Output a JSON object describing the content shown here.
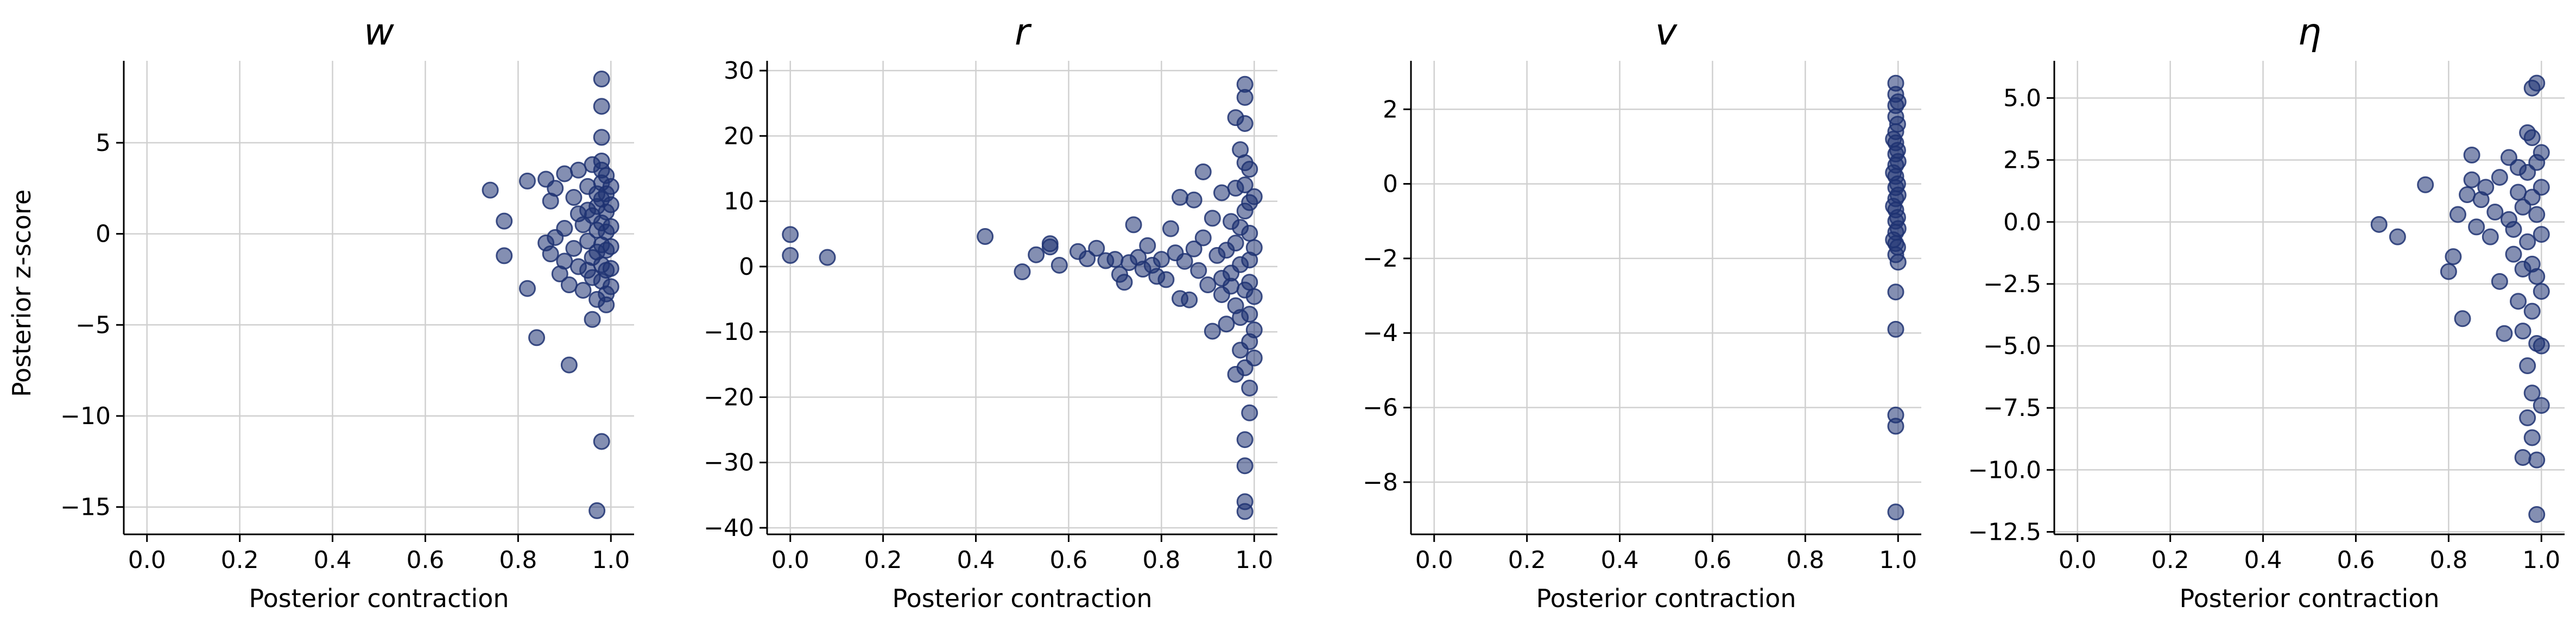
{
  "figure": {
    "ylabel": "Posterior z-score",
    "point_color": "#1f3372",
    "grid_color": "#d0d0d0"
  },
  "chart_data": [
    {
      "type": "scatter",
      "title": "w",
      "xlabel": "Posterior contraction",
      "ylabel": "Posterior z-score",
      "xlim": [
        -0.05,
        1.05
      ],
      "ylim": [
        -16.5,
        9.5
      ],
      "xticks": [
        "0.0",
        "0.2",
        "0.4",
        "0.6",
        "0.8",
        "1.0"
      ],
      "yticks": [
        {
          "v": 5,
          "label": "5"
        },
        {
          "v": 0,
          "label": "0"
        },
        {
          "v": -5,
          "label": "−5"
        },
        {
          "v": -10,
          "label": "−10"
        },
        {
          "v": -15,
          "label": "−15"
        }
      ],
      "grid": true,
      "points": [
        [
          0.74,
          2.4
        ],
        [
          0.77,
          0.7
        ],
        [
          0.77,
          -1.2
        ],
        [
          0.82,
          2.9
        ],
        [
          0.82,
          -3.0
        ],
        [
          0.84,
          -5.7
        ],
        [
          0.86,
          3.0
        ],
        [
          0.86,
          -0.5
        ],
        [
          0.87,
          1.8
        ],
        [
          0.87,
          -1.1
        ],
        [
          0.88,
          2.5
        ],
        [
          0.88,
          -0.2
        ],
        [
          0.89,
          -2.2
        ],
        [
          0.9,
          3.3
        ],
        [
          0.9,
          0.3
        ],
        [
          0.9,
          -1.5
        ],
        [
          0.91,
          -2.8
        ],
        [
          0.91,
          -7.2
        ],
        [
          0.92,
          2.0
        ],
        [
          0.92,
          -0.8
        ],
        [
          0.93,
          3.5
        ],
        [
          0.93,
          1.1
        ],
        [
          0.93,
          -1.8
        ],
        [
          0.94,
          0.5
        ],
        [
          0.94,
          -3.1
        ],
        [
          0.95,
          2.6
        ],
        [
          0.95,
          -0.4
        ],
        [
          0.96,
          3.8
        ],
        [
          0.96,
          -2.4
        ],
        [
          0.96,
          -4.7
        ],
        [
          0.97,
          1.5
        ],
        [
          0.97,
          -1.0
        ],
        [
          0.97,
          -3.6
        ],
        [
          0.98,
          8.5
        ],
        [
          0.98,
          7.0
        ],
        [
          0.98,
          5.3
        ],
        [
          0.98,
          4.0
        ],
        [
          0.98,
          2.8
        ],
        [
          0.98,
          1.9
        ],
        [
          0.98,
          0.6
        ],
        [
          0.98,
          -0.6
        ],
        [
          0.98,
          -1.7
        ],
        [
          0.98,
          -2.6
        ],
        [
          0.98,
          -11.4
        ],
        [
          0.97,
          -15.2
        ],
        [
          0.99,
          3.2
        ],
        [
          0.99,
          2.2
        ],
        [
          0.99,
          1.2
        ],
        [
          0.99,
          0.1
        ],
        [
          0.99,
          -0.9
        ],
        [
          0.99,
          -2.0
        ],
        [
          0.99,
          -3.3
        ],
        [
          1.0,
          2.6
        ],
        [
          1.0,
          1.6
        ],
        [
          1.0,
          0.4
        ],
        [
          1.0,
          -0.7
        ],
        [
          1.0,
          -1.9
        ],
        [
          1.0,
          -2.9
        ],
        [
          0.97,
          2.2
        ],
        [
          0.97,
          0.2
        ],
        [
          0.96,
          1.0
        ],
        [
          0.96,
          -1.3
        ],
        [
          0.95,
          1.3
        ],
        [
          0.95,
          -2.0
        ],
        [
          0.99,
          -3.9
        ],
        [
          0.98,
          3.5
        ]
      ]
    },
    {
      "type": "scatter",
      "title": "r",
      "xlabel": "Posterior contraction",
      "ylabel": "",
      "xlim": [
        -0.05,
        1.05
      ],
      "ylim": [
        -41,
        31.5
      ],
      "xticks": [
        "0.0",
        "0.2",
        "0.4",
        "0.6",
        "0.8",
        "1.0"
      ],
      "yticks": [
        {
          "v": 30,
          "label": "30"
        },
        {
          "v": 20,
          "label": "20"
        },
        {
          "v": 10,
          "label": "10"
        },
        {
          "v": 0,
          "label": "0"
        },
        {
          "v": -10,
          "label": "−10"
        },
        {
          "v": -20,
          "label": "−20"
        },
        {
          "v": -30,
          "label": "−30"
        },
        {
          "v": -40,
          "label": "−40"
        }
      ],
      "grid": true,
      "points": [
        [
          0.0,
          4.9
        ],
        [
          0.0,
          1.7
        ],
        [
          0.08,
          1.4
        ],
        [
          0.42,
          4.6
        ],
        [
          0.5,
          -0.8
        ],
        [
          0.53,
          1.8
        ],
        [
          0.56,
          3.5
        ],
        [
          0.56,
          3.0
        ],
        [
          0.58,
          0.2
        ],
        [
          0.62,
          2.3
        ],
        [
          0.64,
          1.2
        ],
        [
          0.66,
          2.8
        ],
        [
          0.68,
          0.9
        ],
        [
          0.7,
          1.1
        ],
        [
          0.71,
          -1.2
        ],
        [
          0.72,
          -2.4
        ],
        [
          0.73,
          0.6
        ],
        [
          0.74,
          6.4
        ],
        [
          0.75,
          1.4
        ],
        [
          0.76,
          -0.4
        ],
        [
          0.77,
          3.2
        ],
        [
          0.78,
          0.2
        ],
        [
          0.79,
          -1.5
        ],
        [
          0.8,
          1.1
        ],
        [
          0.81,
          -2.0
        ],
        [
          0.82,
          5.8
        ],
        [
          0.83,
          2.1
        ],
        [
          0.84,
          -4.9
        ],
        [
          0.84,
          10.6
        ],
        [
          0.85,
          0.8
        ],
        [
          0.86,
          -5.1
        ],
        [
          0.87,
          2.7
        ],
        [
          0.87,
          10.2
        ],
        [
          0.88,
          -0.6
        ],
        [
          0.89,
          14.5
        ],
        [
          0.89,
          4.4
        ],
        [
          0.9,
          -2.8
        ],
        [
          0.91,
          7.4
        ],
        [
          0.91,
          -9.9
        ],
        [
          0.92,
          1.7
        ],
        [
          0.93,
          11.3
        ],
        [
          0.93,
          -4.3
        ],
        [
          0.94,
          -8.8
        ],
        [
          0.95,
          6.9
        ],
        [
          0.95,
          -1.0
        ],
        [
          0.96,
          22.8
        ],
        [
          0.96,
          3.6
        ],
        [
          0.96,
          -6.0
        ],
        [
          0.97,
          17.9
        ],
        [
          0.97,
          0.3
        ],
        [
          0.97,
          -12.8
        ],
        [
          0.98,
          27.9
        ],
        [
          0.98,
          25.9
        ],
        [
          0.98,
          21.9
        ],
        [
          0.98,
          15.9
        ],
        [
          0.98,
          12.5
        ],
        [
          0.98,
          8.5
        ],
        [
          0.98,
          -3.6
        ],
        [
          0.98,
          -15.5
        ],
        [
          0.98,
          -26.5
        ],
        [
          0.98,
          -30.5
        ],
        [
          0.98,
          -36.0
        ],
        [
          0.98,
          -37.5
        ],
        [
          0.99,
          14.9
        ],
        [
          0.99,
          9.8
        ],
        [
          0.99,
          5.1
        ],
        [
          0.99,
          1.0
        ],
        [
          0.99,
          -2.4
        ],
        [
          0.99,
          -7.3
        ],
        [
          0.99,
          -11.5
        ],
        [
          0.99,
          -18.6
        ],
        [
          0.99,
          -22.4
        ],
        [
          1.0,
          10.7
        ],
        [
          1.0,
          2.9
        ],
        [
          1.0,
          -4.6
        ],
        [
          1.0,
          -9.7
        ],
        [
          1.0,
          -14.0
        ],
        [
          0.97,
          6.0
        ],
        [
          0.97,
          -7.8
        ],
        [
          0.96,
          12.0
        ],
        [
          0.96,
          -16.5
        ],
        [
          0.95,
          -3.0
        ],
        [
          0.94,
          2.5
        ],
        [
          0.93,
          -1.8
        ]
      ]
    },
    {
      "type": "scatter",
      "title": "v",
      "xlabel": "Posterior contraction",
      "ylabel": "",
      "xlim": [
        -0.05,
        1.05
      ],
      "ylim": [
        -9.4,
        3.3
      ],
      "xticks": [
        "0.0",
        "0.2",
        "0.4",
        "0.6",
        "0.8",
        "1.0"
      ],
      "yticks": [
        {
          "v": 2,
          "label": "2"
        },
        {
          "v": 0,
          "label": "0"
        },
        {
          "v": -2,
          "label": "−2"
        },
        {
          "v": -4,
          "label": "−4"
        },
        {
          "v": -6,
          "label": "−6"
        },
        {
          "v": -8,
          "label": "−8"
        }
      ],
      "grid": true,
      "points": [
        [
          0.995,
          2.7
        ],
        [
          0.995,
          2.4
        ],
        [
          0.995,
          2.1
        ],
        [
          0.995,
          1.8
        ],
        [
          0.995,
          1.4
        ],
        [
          0.995,
          1.1
        ],
        [
          0.995,
          0.8
        ],
        [
          0.995,
          0.5
        ],
        [
          0.995,
          0.2
        ],
        [
          0.995,
          -0.1
        ],
        [
          0.995,
          -0.4
        ],
        [
          0.995,
          -0.7
        ],
        [
          0.995,
          -1.0
        ],
        [
          0.995,
          -1.3
        ],
        [
          0.995,
          -1.6
        ],
        [
          0.995,
          -1.9
        ],
        [
          0.995,
          -2.9
        ],
        [
          0.995,
          -3.9
        ],
        [
          0.995,
          -6.2
        ],
        [
          0.995,
          -6.5
        ],
        [
          0.995,
          -8.8
        ],
        [
          0.999,
          1.6
        ],
        [
          0.999,
          0.9
        ],
        [
          0.999,
          0.0
        ],
        [
          0.999,
          -0.9
        ],
        [
          0.999,
          -1.7
        ],
        [
          0.99,
          1.2
        ],
        [
          0.99,
          0.3
        ],
        [
          0.99,
          -0.6
        ],
        [
          0.99,
          -1.5
        ],
        [
          1.0,
          2.2
        ],
        [
          1.0,
          0.6
        ],
        [
          1.0,
          -0.3
        ],
        [
          1.0,
          -1.2
        ],
        [
          1.0,
          -2.1
        ]
      ]
    },
    {
      "type": "scatter",
      "title": "η",
      "xlabel": "Posterior contraction",
      "ylabel": "",
      "xlim": [
        -0.05,
        1.05
      ],
      "ylim": [
        -12.6,
        6.5
      ],
      "xticks": [
        "0.0",
        "0.2",
        "0.4",
        "0.6",
        "0.8",
        "1.0"
      ],
      "yticks": [
        {
          "v": 5,
          "label": "5.0"
        },
        {
          "v": 2.5,
          "label": "2.5"
        },
        {
          "v": 0,
          "label": "0.0"
        },
        {
          "v": -2.5,
          "label": "−2.5"
        },
        {
          "v": -5,
          "label": "−5.0"
        },
        {
          "v": -7.5,
          "label": "−7.5"
        },
        {
          "v": -10,
          "label": "−10.0"
        },
        {
          "v": -12.5,
          "label": "−12.5"
        }
      ],
      "grid": true,
      "points": [
        [
          0.65,
          -0.1
        ],
        [
          0.69,
          -0.6
        ],
        [
          0.75,
          1.5
        ],
        [
          0.8,
          -2.0
        ],
        [
          0.81,
          -1.4
        ],
        [
          0.82,
          0.3
        ],
        [
          0.83,
          -3.9
        ],
        [
          0.84,
          1.1
        ],
        [
          0.85,
          2.7
        ],
        [
          0.85,
          1.7
        ],
        [
          0.86,
          -0.2
        ],
        [
          0.87,
          0.9
        ],
        [
          0.88,
          1.4
        ],
        [
          0.89,
          -0.6
        ],
        [
          0.9,
          0.4
        ],
        [
          0.91,
          -2.4
        ],
        [
          0.91,
          1.8
        ],
        [
          0.92,
          -4.5
        ],
        [
          0.93,
          0.1
        ],
        [
          0.93,
          2.6
        ],
        [
          0.94,
          -1.3
        ],
        [
          0.95,
          1.2
        ],
        [
          0.95,
          -3.2
        ],
        [
          0.96,
          -4.4
        ],
        [
          0.96,
          -9.5
        ],
        [
          0.97,
          2.0
        ],
        [
          0.97,
          -0.8
        ],
        [
          0.97,
          -5.8
        ],
        [
          0.97,
          -7.9
        ],
        [
          0.98,
          5.4
        ],
        [
          0.98,
          3.4
        ],
        [
          0.98,
          1.0
        ],
        [
          0.98,
          -1.7
        ],
        [
          0.98,
          -3.6
        ],
        [
          0.98,
          -6.9
        ],
        [
          0.98,
          -8.7
        ],
        [
          0.99,
          5.6
        ],
        [
          0.99,
          2.4
        ],
        [
          0.99,
          0.3
        ],
        [
          0.99,
          -2.2
        ],
        [
          0.99,
          -4.9
        ],
        [
          0.99,
          -9.6
        ],
        [
          0.99,
          -11.8
        ],
        [
          1.0,
          2.8
        ],
        [
          1.0,
          1.4
        ],
        [
          1.0,
          -0.5
        ],
        [
          1.0,
          -2.8
        ],
        [
          1.0,
          -5.0
        ],
        [
          1.0,
          -7.4
        ],
        [
          0.96,
          0.6
        ],
        [
          0.96,
          -1.9
        ],
        [
          0.95,
          2.2
        ],
        [
          0.94,
          -0.3
        ],
        [
          0.97,
          3.6
        ]
      ]
    }
  ]
}
